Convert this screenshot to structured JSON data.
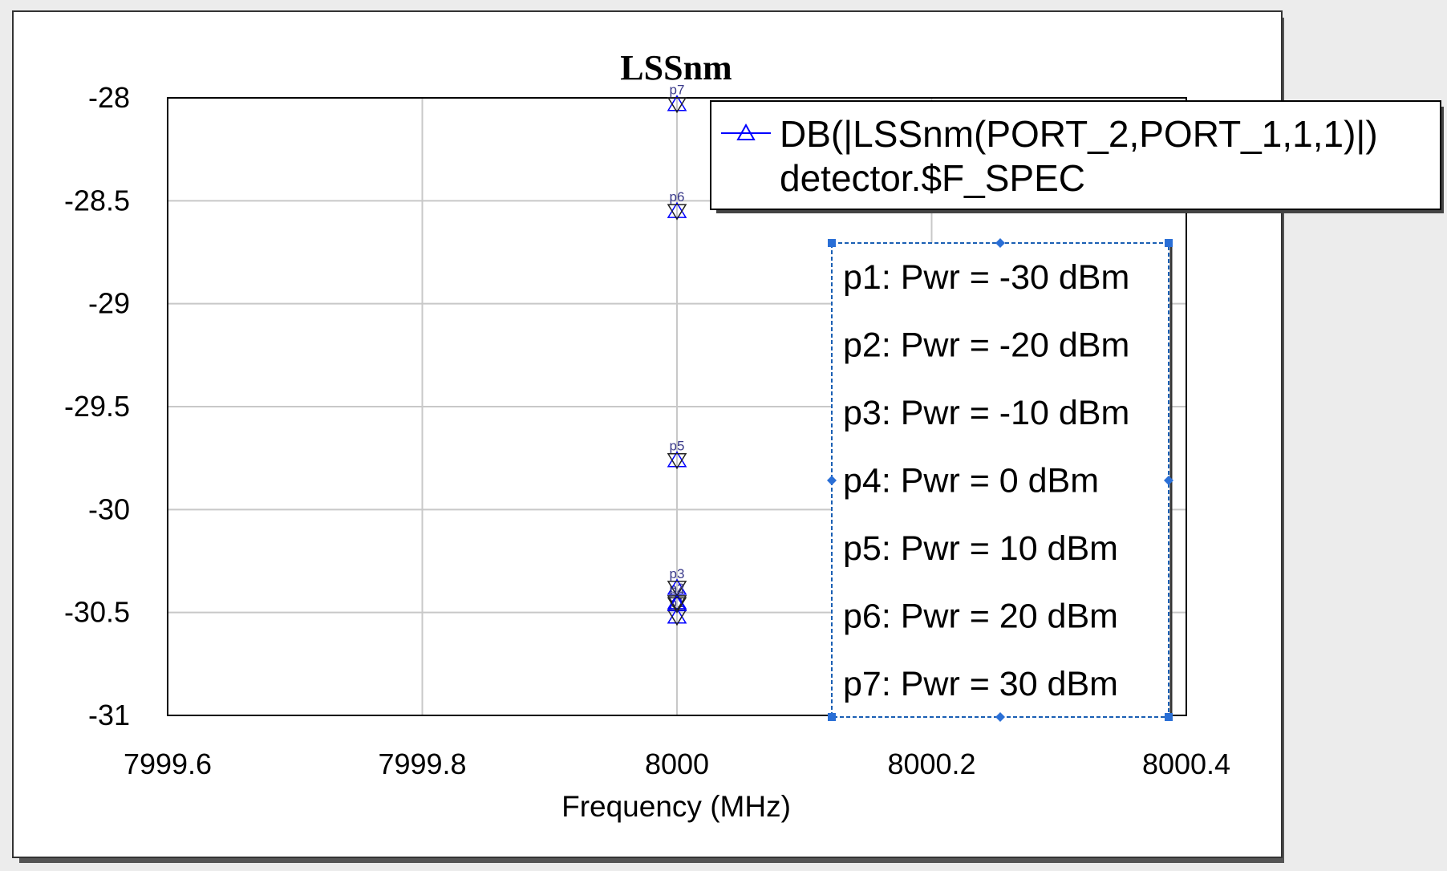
{
  "chart_data": {
    "type": "scatter",
    "title": "LSSnm",
    "xlabel": "Frequency (MHz)",
    "ylabel": "",
    "xlim": [
      7999.6,
      8000.4
    ],
    "ylim": [
      -31,
      -28
    ],
    "xticks": [
      "7999.6",
      "7999.8",
      "8000",
      "8000.2",
      "8000.4"
    ],
    "yticks": [
      "-28",
      "-28.5",
      "-29",
      "-29.5",
      "-30",
      "-30.5",
      "-31"
    ],
    "grid": true,
    "legend_position": "top-right",
    "series": [
      {
        "name": "DB(|LSSnm(PORT_2,PORT_1,1,1)|)",
        "name_line2": "detector.$F_SPEC",
        "color": "#0000ff",
        "marker": "triangle",
        "points": [
          {
            "label": "p1",
            "x": 8000,
            "y": -30.52
          },
          {
            "label": "p2",
            "x": 8000,
            "y": -30.45
          },
          {
            "label": "p3",
            "x": 8000,
            "y": -30.38
          },
          {
            "label": "p4",
            "x": 8000,
            "y": -30.46
          },
          {
            "label": "p5",
            "x": 8000,
            "y": -29.76
          },
          {
            "label": "p6",
            "x": 8000,
            "y": -28.55
          },
          {
            "label": "p7",
            "x": 8000,
            "y": -28.03
          }
        ]
      }
    ],
    "annotations": [
      "p1: Pwr = -30 dBm",
      "p2: Pwr = -20 dBm",
      "p3: Pwr = -10 dBm",
      "p4: Pwr = 0 dBm",
      "p5: Pwr = 10 dBm",
      "p6: Pwr = 20 dBm",
      "p7: Pwr = 30 dBm"
    ]
  }
}
